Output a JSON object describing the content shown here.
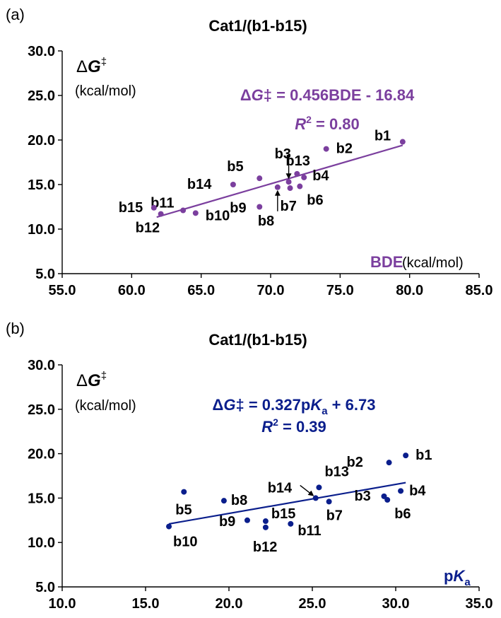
{
  "colors": {
    "panel_a": "#7B3F9E",
    "panel_b": "#0A1E8C",
    "axis": "#000000"
  },
  "chart_data": [
    {
      "type": "scatter",
      "panel": "(a)",
      "title": "Cat1/(b1-b15)",
      "ylabel_symbol": "ΔG‡",
      "ylabel_unit": "(kcal/mol)",
      "xlabel_name": "BDE",
      "xlabel_unit": " (kcal/mol)",
      "equation": {
        "lhs": "ΔG‡ = 0.456BDE - 16.84",
        "r2_value": "= 0.80"
      },
      "xlim": [
        55,
        85
      ],
      "ylim": [
        5,
        30
      ],
      "xticks": [
        "55.0",
        "60.0",
        "65.0",
        "70.0",
        "75.0",
        "80.0",
        "85.0"
      ],
      "yticks": [
        "5.0",
        "10.0",
        "15.0",
        "20.0",
        "25.0",
        "30.0"
      ],
      "trendline": {
        "slope": 0.456,
        "intercept": -16.84,
        "x_range": [
          61.8,
          79.5
        ]
      },
      "points": [
        {
          "label": "b1",
          "x": 79.5,
          "y": 19.8
        },
        {
          "label": "b2",
          "x": 74.0,
          "y": 19.0
        },
        {
          "label": "b3",
          "x": 71.3,
          "y": 15.3
        },
        {
          "label": "b4",
          "x": 72.4,
          "y": 15.8
        },
        {
          "label": "b5",
          "x": 69.2,
          "y": 15.7
        },
        {
          "label": "b6",
          "x": 72.1,
          "y": 14.8
        },
        {
          "label": "b7",
          "x": 71.4,
          "y": 14.6
        },
        {
          "label": "b8",
          "x": 70.5,
          "y": 14.7
        },
        {
          "label": "b9",
          "x": 69.2,
          "y": 12.5
        },
        {
          "label": "b10",
          "x": 64.6,
          "y": 11.8
        },
        {
          "label": "b11",
          "x": 63.7,
          "y": 12.1
        },
        {
          "label": "b12",
          "x": 62.1,
          "y": 11.7
        },
        {
          "label": "b13",
          "x": 71.9,
          "y": 16.2
        },
        {
          "label": "b14",
          "x": 67.3,
          "y": 15.0
        },
        {
          "label": "b15",
          "x": 61.6,
          "y": 12.4
        }
      ]
    },
    {
      "type": "scatter",
      "panel": "(b)",
      "title": "Cat1/(b1-b15)",
      "ylabel_symbol": "ΔG‡",
      "ylabel_unit": "(kcal/mol)",
      "xlabel_name": "pKa",
      "equation": {
        "lhs": "ΔG‡ = 0.327pKa + 6.73",
        "r2_value": "= 0.39"
      },
      "xlim": [
        10,
        35
      ],
      "ylim": [
        5,
        30
      ],
      "xticks": [
        "10.0",
        "15.0",
        "20.0",
        "25.0",
        "30.0",
        "35.0"
      ],
      "yticks": [
        "5.0",
        "10.0",
        "15.0",
        "20.0",
        "25.0",
        "30.0"
      ],
      "trendline": {
        "slope": 0.327,
        "intercept": 6.73,
        "x_range": [
          16.4,
          30.6
        ]
      },
      "points": [
        {
          "label": "b1",
          "x": 30.6,
          "y": 19.8
        },
        {
          "label": "b2",
          "x": 29.6,
          "y": 19.0
        },
        {
          "label": "b3",
          "x": 29.3,
          "y": 15.2
        },
        {
          "label": "b4",
          "x": 30.3,
          "y": 15.8
        },
        {
          "label": "b5",
          "x": 17.3,
          "y": 15.7
        },
        {
          "label": "b6",
          "x": 29.5,
          "y": 14.8
        },
        {
          "label": "b7",
          "x": 26.0,
          "y": 14.6
        },
        {
          "label": "b8",
          "x": 19.7,
          "y": 14.7
        },
        {
          "label": "b9",
          "x": 21.1,
          "y": 12.5
        },
        {
          "label": "b10",
          "x": 16.4,
          "y": 11.8
        },
        {
          "label": "b11",
          "x": 23.7,
          "y": 12.1
        },
        {
          "label": "b12",
          "x": 22.2,
          "y": 11.7
        },
        {
          "label": "b13",
          "x": 25.4,
          "y": 16.2
        },
        {
          "label": "b14",
          "x": 25.2,
          "y": 15.0
        },
        {
          "label": "b15",
          "x": 22.2,
          "y": 12.4
        }
      ]
    }
  ]
}
